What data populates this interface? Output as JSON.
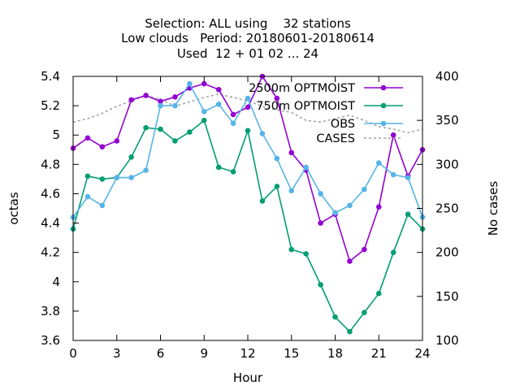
{
  "chart_data": {
    "type": "line",
    "title_lines": [
      "Selection: ALL using    32 stations",
      "Low clouds   Period: 20180601-20180614",
      "Used  12 + 01 02 ... 24"
    ],
    "xlabel": "Hour",
    "ylabel": "octas",
    "y2label": "No cases",
    "xlim": [
      0,
      24
    ],
    "ylim": [
      3.6,
      5.4
    ],
    "y2lim": [
      100,
      400
    ],
    "x_ticks": [
      "0",
      "3",
      "6",
      "9",
      "12",
      "15",
      "18",
      "21",
      "24"
    ],
    "y_ticks": [
      "3.6",
      "3.8",
      "4",
      "4.2",
      "4.4",
      "4.6",
      "4.8",
      "5",
      "5.2",
      "5.4"
    ],
    "y2_ticks": [
      "100",
      "150",
      "200",
      "250",
      "300",
      "350",
      "400"
    ],
    "legend_position": "top-right",
    "x": [
      0,
      1,
      2,
      3,
      4,
      5,
      6,
      7,
      8,
      9,
      10,
      11,
      12,
      13,
      14,
      15,
      16,
      17,
      18,
      19,
      20,
      21,
      22,
      23,
      24
    ],
    "series": [
      {
        "name": "2500m OPTMOIST",
        "color": "#9400d3",
        "marker": "plus",
        "axis": "y",
        "values": [
          4.91,
          4.98,
          4.92,
          4.96,
          5.24,
          5.27,
          5.23,
          5.26,
          5.32,
          5.35,
          5.31,
          5.14,
          5.19,
          5.4,
          5.25,
          4.88,
          4.76,
          4.4,
          4.46,
          4.14,
          4.22,
          4.51,
          5.0,
          4.72,
          4.9
        ]
      },
      {
        "name": "750m OPTMOIST",
        "color": "#009e73",
        "marker": "plus",
        "axis": "y",
        "values": [
          4.36,
          4.72,
          4.7,
          4.71,
          4.85,
          5.05,
          5.04,
          4.96,
          5.02,
          5.1,
          4.78,
          4.75,
          5.03,
          4.55,
          4.65,
          4.22,
          4.19,
          3.98,
          3.76,
          3.66,
          3.79,
          3.92,
          4.2,
          4.46,
          4.36
        ]
      },
      {
        "name": "OBS",
        "color": "#56b4e9",
        "marker": "plus",
        "axis": "y",
        "values": [
          4.44,
          4.58,
          4.52,
          4.71,
          4.71,
          4.76,
          5.2,
          5.2,
          5.35,
          5.16,
          5.21,
          5.08,
          5.25,
          5.01,
          4.84,
          4.62,
          4.78,
          4.6,
          4.47,
          4.52,
          4.63,
          4.81,
          4.73,
          4.71,
          4.44
        ]
      },
      {
        "name": "CASES",
        "color": "#a0a0a0",
        "marker": "none",
        "dashed": true,
        "axis": "y2",
        "values": [
          348,
          352,
          358,
          366,
          372,
          378,
          374,
          366,
          371,
          376,
          380,
          376,
          372,
          366,
          362,
          359,
          350,
          348,
          352,
          356,
          350,
          343,
          340,
          336,
          340
        ]
      }
    ]
  }
}
